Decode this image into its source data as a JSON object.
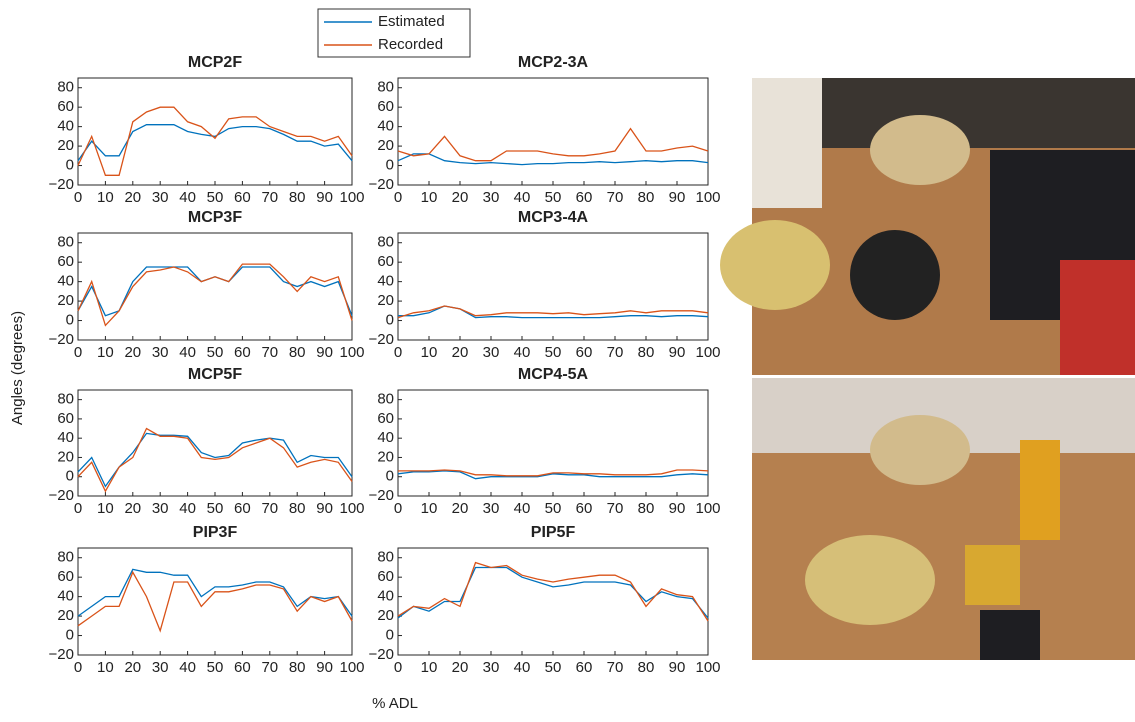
{
  "figure": {
    "xlabel": "% ADL",
    "ylabel": "Angles (degrees)",
    "legend": [
      {
        "name": "Estimated",
        "color": "#0072bd"
      },
      {
        "name": "Recorded",
        "color": "#d95319"
      }
    ]
  },
  "chart_data": [
    {
      "type": "line",
      "title": "MCP2F",
      "x": [
        0,
        5,
        10,
        15,
        20,
        25,
        30,
        35,
        40,
        45,
        50,
        55,
        60,
        65,
        70,
        75,
        80,
        85,
        90,
        95,
        100
      ],
      "series": [
        {
          "values": [
            5,
            25,
            10,
            10,
            35,
            42,
            42,
            42,
            35,
            32,
            30,
            38,
            40,
            40,
            38,
            32,
            25,
            25,
            20,
            22,
            5
          ]
        },
        {
          "values": [
            0,
            30,
            -10,
            -10,
            45,
            55,
            60,
            60,
            45,
            40,
            28,
            48,
            50,
            50,
            40,
            35,
            30,
            30,
            25,
            30,
            10
          ]
        }
      ],
      "xlim": [
        0,
        100
      ],
      "ylim": [
        -20,
        90
      ],
      "xticks": [
        0,
        10,
        20,
        30,
        40,
        50,
        60,
        70,
        80,
        90,
        100
      ],
      "yticks": [
        {
          "value": -20,
          "label": "−20"
        },
        0,
        20,
        40,
        60,
        80
      ]
    },
    {
      "type": "line",
      "title": "MCP2-3A",
      "x": [
        0,
        5,
        10,
        15,
        20,
        25,
        30,
        35,
        40,
        45,
        50,
        55,
        60,
        65,
        70,
        75,
        80,
        85,
        90,
        95,
        100
      ],
      "series": [
        {
          "values": [
            5,
            12,
            12,
            5,
            3,
            2,
            3,
            2,
            1,
            2,
            2,
            3,
            3,
            4,
            3,
            4,
            5,
            4,
            5,
            5,
            3
          ]
        },
        {
          "values": [
            15,
            10,
            12,
            30,
            10,
            5,
            5,
            15,
            15,
            15,
            12,
            10,
            10,
            12,
            15,
            38,
            15,
            15,
            18,
            20,
            15
          ]
        }
      ],
      "xlim": [
        0,
        100
      ],
      "ylim": [
        -20,
        90
      ],
      "xticks": [
        0,
        10,
        20,
        30,
        40,
        50,
        60,
        70,
        80,
        90,
        100
      ],
      "yticks": [
        {
          "value": -20,
          "label": "−20"
        },
        0,
        20,
        40,
        60,
        80
      ]
    },
    {
      "type": "line",
      "title": "MCP3F",
      "x": [
        0,
        5,
        10,
        15,
        20,
        25,
        30,
        35,
        40,
        45,
        50,
        55,
        60,
        65,
        70,
        75,
        80,
        85,
        90,
        95,
        100
      ],
      "series": [
        {
          "values": [
            10,
            35,
            5,
            10,
            40,
            55,
            55,
            55,
            55,
            40,
            45,
            40,
            55,
            55,
            55,
            40,
            35,
            40,
            35,
            40,
            5
          ]
        },
        {
          "values": [
            10,
            40,
            -5,
            10,
            35,
            50,
            52,
            55,
            50,
            40,
            45,
            40,
            58,
            58,
            58,
            45,
            30,
            45,
            40,
            45,
            0
          ]
        }
      ],
      "xlim": [
        0,
        100
      ],
      "ylim": [
        -20,
        90
      ],
      "xticks": [
        0,
        10,
        20,
        30,
        40,
        50,
        60,
        70,
        80,
        90,
        100
      ],
      "yticks": [
        {
          "value": -20,
          "label": "−20"
        },
        0,
        20,
        40,
        60,
        80
      ]
    },
    {
      "type": "line",
      "title": "MCP3-4A",
      "x": [
        0,
        5,
        10,
        15,
        20,
        25,
        30,
        35,
        40,
        45,
        50,
        55,
        60,
        65,
        70,
        75,
        80,
        85,
        90,
        95,
        100
      ],
      "series": [
        {
          "values": [
            5,
            5,
            8,
            15,
            12,
            3,
            4,
            4,
            3,
            3,
            3,
            3,
            3,
            3,
            4,
            5,
            5,
            4,
            5,
            5,
            4
          ]
        },
        {
          "values": [
            3,
            8,
            10,
            15,
            12,
            5,
            6,
            8,
            8,
            8,
            7,
            8,
            6,
            7,
            8,
            10,
            8,
            10,
            10,
            10,
            8
          ]
        }
      ],
      "xlim": [
        0,
        100
      ],
      "ylim": [
        -20,
        90
      ],
      "xticks": [
        0,
        10,
        20,
        30,
        40,
        50,
        60,
        70,
        80,
        90,
        100
      ],
      "yticks": [
        {
          "value": -20,
          "label": "−20"
        },
        0,
        20,
        40,
        60,
        80
      ]
    },
    {
      "type": "line",
      "title": "MCP5F",
      "x": [
        0,
        5,
        10,
        15,
        20,
        25,
        30,
        35,
        40,
        45,
        50,
        55,
        60,
        65,
        70,
        75,
        80,
        85,
        90,
        95,
        100
      ],
      "series": [
        {
          "values": [
            5,
            20,
            -10,
            10,
            25,
            45,
            43,
            43,
            42,
            25,
            20,
            22,
            35,
            38,
            40,
            38,
            15,
            22,
            20,
            20,
            0
          ]
        },
        {
          "values": [
            0,
            15,
            -15,
            10,
            20,
            50,
            42,
            42,
            40,
            20,
            18,
            20,
            30,
            35,
            40,
            30,
            10,
            15,
            18,
            15,
            -5
          ]
        }
      ],
      "xlim": [
        0,
        100
      ],
      "ylim": [
        -20,
        90
      ],
      "xticks": [
        0,
        10,
        20,
        30,
        40,
        50,
        60,
        70,
        80,
        90,
        100
      ],
      "yticks": [
        {
          "value": -20,
          "label": "−20"
        },
        0,
        20,
        40,
        60,
        80
      ]
    },
    {
      "type": "line",
      "title": "MCP4-5A",
      "x": [
        0,
        5,
        10,
        15,
        20,
        25,
        30,
        35,
        40,
        45,
        50,
        55,
        60,
        65,
        70,
        75,
        80,
        85,
        90,
        95,
        100
      ],
      "series": [
        {
          "values": [
            3,
            5,
            5,
            6,
            5,
            -2,
            0,
            0,
            0,
            0,
            3,
            2,
            2,
            0,
            0,
            0,
            0,
            0,
            2,
            3,
            2
          ]
        },
        {
          "values": [
            6,
            6,
            6,
            7,
            6,
            2,
            2,
            1,
            1,
            1,
            4,
            4,
            3,
            3,
            2,
            2,
            2,
            3,
            7,
            7,
            6
          ]
        }
      ],
      "xlim": [
        0,
        100
      ],
      "ylim": [
        -20,
        90
      ],
      "xticks": [
        0,
        10,
        20,
        30,
        40,
        50,
        60,
        70,
        80,
        90,
        100
      ],
      "yticks": [
        {
          "value": -20,
          "label": "−20"
        },
        0,
        20,
        40,
        60,
        80
      ]
    },
    {
      "type": "line",
      "title": "PIP3F",
      "x": [
        0,
        5,
        10,
        15,
        20,
        25,
        30,
        35,
        40,
        45,
        50,
        55,
        60,
        65,
        70,
        75,
        80,
        85,
        90,
        95,
        100
      ],
      "series": [
        {
          "values": [
            20,
            30,
            40,
            40,
            68,
            65,
            65,
            62,
            62,
            40,
            50,
            50,
            52,
            55,
            55,
            50,
            30,
            40,
            38,
            40,
            20
          ]
        },
        {
          "values": [
            10,
            20,
            30,
            30,
            65,
            40,
            5,
            55,
            55,
            30,
            45,
            45,
            48,
            52,
            52,
            48,
            25,
            40,
            35,
            40,
            15
          ]
        }
      ],
      "xlim": [
        0,
        100
      ],
      "ylim": [
        -20,
        90
      ],
      "xticks": [
        0,
        10,
        20,
        30,
        40,
        50,
        60,
        70,
        80,
        90,
        100
      ],
      "yticks": [
        {
          "value": -20,
          "label": "−20"
        },
        0,
        20,
        40,
        60,
        80
      ]
    },
    {
      "type": "line",
      "title": "PIP5F",
      "x": [
        0,
        5,
        10,
        15,
        20,
        25,
        30,
        35,
        40,
        45,
        50,
        55,
        60,
        65,
        70,
        75,
        80,
        85,
        90,
        95,
        100
      ],
      "series": [
        {
          "values": [
            18,
            30,
            25,
            35,
            35,
            70,
            70,
            70,
            60,
            55,
            50,
            52,
            55,
            55,
            55,
            52,
            35,
            45,
            40,
            38,
            18
          ]
        },
        {
          "values": [
            20,
            30,
            28,
            38,
            30,
            75,
            70,
            72,
            62,
            58,
            55,
            58,
            60,
            62,
            62,
            55,
            30,
            48,
            42,
            40,
            15
          ]
        }
      ],
      "xlim": [
        0,
        100
      ],
      "ylim": [
        -20,
        90
      ],
      "xticks": [
        0,
        10,
        20,
        30,
        40,
        50,
        60,
        70,
        80,
        90,
        100
      ],
      "yticks": [
        {
          "value": -20,
          "label": "−20"
        },
        0,
        20,
        40,
        60,
        80
      ]
    }
  ]
}
